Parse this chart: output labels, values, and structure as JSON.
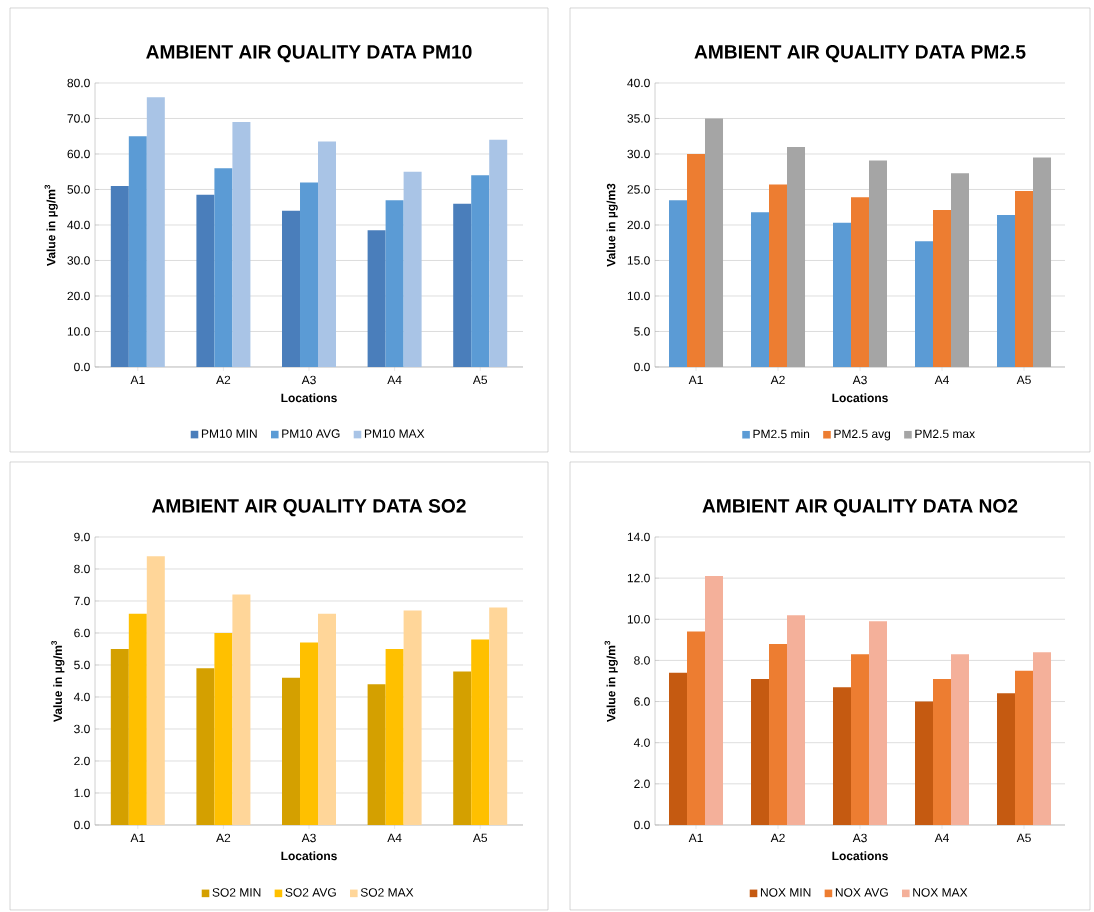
{
  "chart_data": [
    {
      "type": "bar",
      "title": "AMBIENT AIR QUALITY DATA PM10",
      "xlabel": "Locations",
      "ylabel": "Value in µg/m$^{3}$",
      "categories": [
        "A1",
        "A2",
        "A3",
        "A4",
        "A5"
      ],
      "series": [
        {
          "name": "PM10 MIN",
          "color": "#4a7ebb",
          "values": [
            51,
            48.5,
            44,
            38.5,
            46
          ]
        },
        {
          "name": "PM10 AVG",
          "color": "#5b9bd5",
          "values": [
            65,
            56,
            52,
            47,
            54
          ]
        },
        {
          "name": "PM10 MAX",
          "color": "#a9c4e6",
          "values": [
            76,
            69,
            63.5,
            55,
            64
          ]
        }
      ],
      "ylim": [
        0,
        80
      ],
      "yticks": [
        {
          "value": 0,
          "label": "0.0"
        },
        {
          "value": 10,
          "label": "10.0"
        },
        {
          "value": 20,
          "label": "20.0"
        },
        {
          "value": 30,
          "label": "30.0"
        },
        {
          "value": 40,
          "label": "40.0"
        },
        {
          "value": 50,
          "label": "50.0"
        },
        {
          "value": 60,
          "label": "60.0"
        },
        {
          "value": 70,
          "label": "70.0"
        },
        {
          "value": 80,
          "label": "80.0"
        }
      ],
      "grid": "y",
      "legend": "bottom"
    },
    {
      "type": "bar",
      "title": "AMBIENT AIR QUALITY DATA PM2.5",
      "xlabel": "Locations",
      "ylabel": "Value in µg/m3",
      "categories": [
        "A1",
        "A2",
        "A3",
        "A4",
        "A5"
      ],
      "series": [
        {
          "name": "PM2.5 min",
          "color": "#5b9bd5",
          "values": [
            23.5,
            21.8,
            20.3,
            17.7,
            21.4
          ]
        },
        {
          "name": "PM2.5 avg",
          "color": "#ed7d31",
          "values": [
            30,
            25.7,
            23.9,
            22.1,
            24.8
          ]
        },
        {
          "name": "PM2.5 max",
          "color": "#a5a5a5",
          "values": [
            35,
            31,
            29.1,
            27.3,
            29.5
          ]
        }
      ],
      "ylim": [
        0,
        40
      ],
      "yticks": [
        {
          "value": 0,
          "label": "0.0"
        },
        {
          "value": 5,
          "label": "5.0"
        },
        {
          "value": 10,
          "label": "10.0"
        },
        {
          "value": 15,
          "label": "15.0"
        },
        {
          "value": 20,
          "label": "20.0"
        },
        {
          "value": 25,
          "label": "25.0"
        },
        {
          "value": 30,
          "label": "30.0"
        },
        {
          "value": 35,
          "label": "35.0"
        },
        {
          "value": 40,
          "label": "40.0"
        }
      ],
      "grid": "y",
      "legend": "bottom"
    },
    {
      "type": "bar",
      "title": "AMBIENT AIR QUALITY DATA SO2",
      "xlabel": "Locations",
      "ylabel": "Value in µg/m$^{3}$",
      "categories": [
        "A1",
        "A2",
        "A3",
        "A4",
        "A5"
      ],
      "series": [
        {
          "name": "SO2 MIN",
          "color": "#d4a000",
          "values": [
            5.5,
            4.9,
            4.6,
            4.4,
            4.8
          ]
        },
        {
          "name": "SO2 AVG",
          "color": "#ffc000",
          "values": [
            6.6,
            6.0,
            5.7,
            5.5,
            5.8
          ]
        },
        {
          "name": "SO2 MAX",
          "color": "#ffd699",
          "values": [
            8.4,
            7.2,
            6.6,
            6.7,
            6.8
          ]
        }
      ],
      "ylim": [
        0,
        9
      ],
      "yticks": [
        {
          "value": 0,
          "label": "0.0"
        },
        {
          "value": 1,
          "label": "1.0"
        },
        {
          "value": 2,
          "label": "2.0"
        },
        {
          "value": 3,
          "label": "3.0"
        },
        {
          "value": 4,
          "label": "4.0"
        },
        {
          "value": 5,
          "label": "5.0"
        },
        {
          "value": 6,
          "label": "6.0"
        },
        {
          "value": 7,
          "label": "7.0"
        },
        {
          "value": 8,
          "label": "8.0"
        },
        {
          "value": 9,
          "label": "9.0"
        }
      ],
      "grid": "y",
      "legend": "bottom"
    },
    {
      "type": "bar",
      "title": "AMBIENT AIR QUALITY DATA NO2",
      "xlabel": "Locations",
      "ylabel": "Value in  µg/m$^{3}$",
      "categories": [
        "A1",
        "A2",
        "A3",
        "A4",
        "A5"
      ],
      "series": [
        {
          "name": "NOX MIN",
          "color": "#c55a11",
          "values": [
            7.4,
            7.1,
            6.7,
            6.0,
            6.4
          ]
        },
        {
          "name": "NOX AVG",
          "color": "#ed7d31",
          "values": [
            9.4,
            8.8,
            8.3,
            7.1,
            7.5
          ]
        },
        {
          "name": "NOX MAX",
          "color": "#f4b09a",
          "values": [
            12.1,
            10.2,
            9.9,
            8.3,
            8.4
          ]
        }
      ],
      "ylim": [
        0,
        14
      ],
      "yticks": [
        {
          "value": 0,
          "label": "0.0"
        },
        {
          "value": 2,
          "label": "2.0"
        },
        {
          "value": 4,
          "label": "4.0"
        },
        {
          "value": 6,
          "label": "6.0"
        },
        {
          "value": 8,
          "label": "8.0"
        },
        {
          "value": 10,
          "label": "10.0"
        },
        {
          "value": 12,
          "label": "12.0"
        },
        {
          "value": 14,
          "label": "14.0"
        }
      ],
      "grid": "y",
      "legend": "bottom"
    }
  ]
}
